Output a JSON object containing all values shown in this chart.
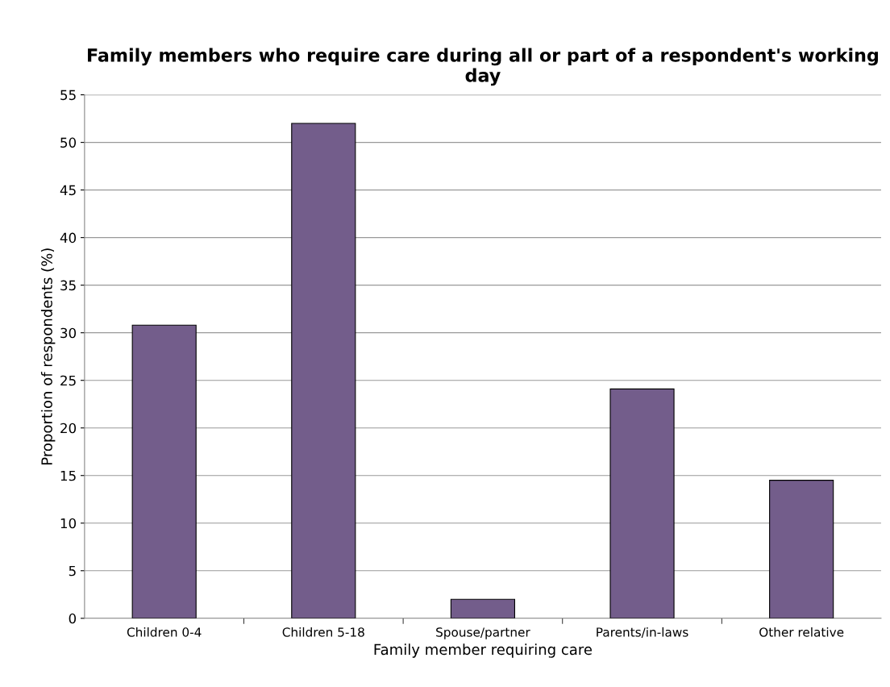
{
  "chart_data": {
    "type": "bar",
    "title": "Family members who require care during all or part of a respondent's working day",
    "xlabel": "Family member requiring care",
    "ylabel": "Proportion of respondents (%)",
    "categories": [
      "Children 0-4",
      "Children 5-18",
      "Spouse/partner",
      "Parents/in-laws",
      "Other relative"
    ],
    "values": [
      30.8,
      52.0,
      2.0,
      24.1,
      14.5
    ],
    "color": "#735d8b",
    "ylim": [
      0,
      55
    ],
    "yticks": [
      0,
      5,
      10,
      15,
      20,
      25,
      30,
      35,
      40,
      45,
      50,
      55
    ],
    "grid": "y",
    "legend": false
  }
}
